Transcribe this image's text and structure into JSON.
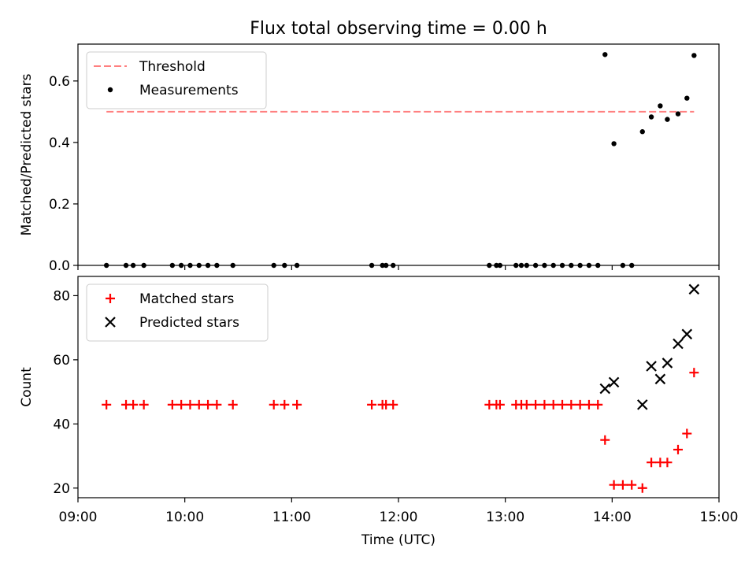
{
  "title": "Flux total observing time = 0.00 h",
  "chart_data": [
    {
      "type": "scatter",
      "ylabel": "Matched/Predicted stars",
      "xlim": [
        "09:00",
        "15:00"
      ],
      "ylim": [
        0,
        0.72
      ],
      "yticks": [
        "0.0",
        "0.2",
        "0.4",
        "0.6"
      ],
      "legend_position": "top-left",
      "threshold": {
        "name": "Threshold",
        "value": 0.5,
        "x_start": "09:16",
        "x_end": "14:46",
        "color": "#ff8080",
        "style": "dashed"
      },
      "series": [
        {
          "name": "Measurements",
          "color": "#000000",
          "marker": "dot",
          "points": [
            [
              "09:16",
              0.0
            ],
            [
              "09:27",
              0.0
            ],
            [
              "09:31",
              0.0
            ],
            [
              "09:37",
              0.0
            ],
            [
              "09:53",
              0.0
            ],
            [
              "09:58",
              0.0
            ],
            [
              "10:03",
              0.0
            ],
            [
              "10:08",
              0.0
            ],
            [
              "10:13",
              0.0
            ],
            [
              "10:18",
              0.0
            ],
            [
              "10:27",
              0.0
            ],
            [
              "10:50",
              0.0
            ],
            [
              "10:56",
              0.0
            ],
            [
              "11:03",
              0.0
            ],
            [
              "11:45",
              0.0
            ],
            [
              "11:51",
              0.0
            ],
            [
              "11:53",
              0.0
            ],
            [
              "11:57",
              0.0
            ],
            [
              "12:51",
              0.0
            ],
            [
              "12:55",
              0.0
            ],
            [
              "12:57",
              0.0
            ],
            [
              "13:06",
              0.0
            ],
            [
              "13:09",
              0.0
            ],
            [
              "13:12",
              0.0
            ],
            [
              "13:17",
              0.0
            ],
            [
              "13:22",
              0.0
            ],
            [
              "13:27",
              0.0
            ],
            [
              "13:32",
              0.0
            ],
            [
              "13:37",
              0.0
            ],
            [
              "13:42",
              0.0
            ],
            [
              "13:47",
              0.0
            ],
            [
              "13:52",
              0.0
            ],
            [
              "13:56",
              0.686
            ],
            [
              "14:01",
              0.396
            ],
            [
              "14:06",
              0.0
            ],
            [
              "14:11",
              0.0
            ],
            [
              "14:17",
              0.435
            ],
            [
              "14:22",
              0.483
            ],
            [
              "14:27",
              0.519
            ],
            [
              "14:31",
              0.475
            ],
            [
              "14:37",
              0.493
            ],
            [
              "14:42",
              0.544
            ],
            [
              "14:46",
              0.683
            ]
          ]
        }
      ]
    },
    {
      "type": "scatter",
      "xlabel": "Time (UTC)",
      "ylabel": "Count",
      "xlim": [
        "09:00",
        "15:00"
      ],
      "xticks": [
        "09:00",
        "10:00",
        "11:00",
        "12:00",
        "13:00",
        "14:00",
        "15:00"
      ],
      "ylim": [
        17,
        86
      ],
      "yticks": [
        "20",
        "40",
        "60",
        "80"
      ],
      "legend_position": "top-left",
      "series": [
        {
          "name": "Matched stars",
          "color": "#ff0000",
          "marker": "plus",
          "points": [
            [
              "09:16",
              46
            ],
            [
              "09:27",
              46
            ],
            [
              "09:31",
              46
            ],
            [
              "09:37",
              46
            ],
            [
              "09:53",
              46
            ],
            [
              "09:58",
              46
            ],
            [
              "10:03",
              46
            ],
            [
              "10:08",
              46
            ],
            [
              "10:13",
              46
            ],
            [
              "10:18",
              46
            ],
            [
              "10:27",
              46
            ],
            [
              "10:50",
              46
            ],
            [
              "10:56",
              46
            ],
            [
              "11:03",
              46
            ],
            [
              "11:45",
              46
            ],
            [
              "11:51",
              46
            ],
            [
              "11:53",
              46
            ],
            [
              "11:57",
              46
            ],
            [
              "12:51",
              46
            ],
            [
              "12:55",
              46
            ],
            [
              "12:57",
              46
            ],
            [
              "13:06",
              46
            ],
            [
              "13:09",
              46
            ],
            [
              "13:12",
              46
            ],
            [
              "13:17",
              46
            ],
            [
              "13:22",
              46
            ],
            [
              "13:27",
              46
            ],
            [
              "13:32",
              46
            ],
            [
              "13:37",
              46
            ],
            [
              "13:42",
              46
            ],
            [
              "13:47",
              46
            ],
            [
              "13:52",
              46
            ],
            [
              "13:56",
              35
            ],
            [
              "14:01",
              21
            ],
            [
              "14:06",
              21
            ],
            [
              "14:11",
              21
            ],
            [
              "14:17",
              20
            ],
            [
              "14:22",
              28
            ],
            [
              "14:27",
              28
            ],
            [
              "14:31",
              28
            ],
            [
              "14:37",
              32
            ],
            [
              "14:42",
              37
            ],
            [
              "14:46",
              56
            ]
          ]
        },
        {
          "name": "Predicted stars",
          "color": "#000000",
          "marker": "x",
          "points": [
            [
              "13:56",
              51
            ],
            [
              "14:01",
              53
            ],
            [
              "14:17",
              46
            ],
            [
              "14:22",
              58
            ],
            [
              "14:27",
              54
            ],
            [
              "14:31",
              59
            ],
            [
              "14:37",
              65
            ],
            [
              "14:42",
              68
            ],
            [
              "14:46",
              82
            ]
          ]
        }
      ]
    }
  ]
}
